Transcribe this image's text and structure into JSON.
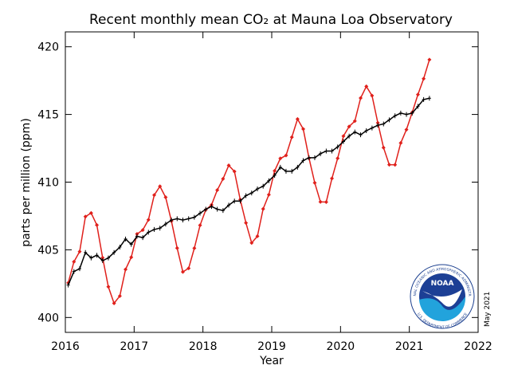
{
  "chart_data": {
    "type": "line",
    "title": "Recent monthly mean CO₂ at Mauna Loa Observatory",
    "x_label": "Year",
    "y_label": "parts per million (ppm)",
    "annotation": "May 2021",
    "logo": {
      "name": "NOAA",
      "ring_top": "NATIONAL OCEANIC AND ATMOSPHERIC ADMINISTRATION",
      "ring_bottom": "U.S. DEPARTMENT OF COMMERCE"
    },
    "xlim": [
      2016,
      2022
    ],
    "xticks": [
      2016,
      2017,
      2018,
      2019,
      2020,
      2021,
      2022
    ],
    "ylim": [
      398.9,
      421.1
    ],
    "yticks": [
      400,
      405,
      410,
      415,
      420
    ],
    "x": [
      2016.042,
      2016.125,
      2016.208,
      2016.292,
      2016.375,
      2016.458,
      2016.542,
      2016.625,
      2016.708,
      2016.792,
      2016.875,
      2016.958,
      2017.042,
      2017.125,
      2017.208,
      2017.292,
      2017.375,
      2017.458,
      2017.542,
      2017.625,
      2017.708,
      2017.792,
      2017.875,
      2017.958,
      2018.042,
      2018.125,
      2018.208,
      2018.292,
      2018.375,
      2018.458,
      2018.542,
      2018.625,
      2018.708,
      2018.792,
      2018.875,
      2018.958,
      2019.042,
      2019.125,
      2019.208,
      2019.292,
      2019.375,
      2019.458,
      2019.542,
      2019.625,
      2019.708,
      2019.792,
      2019.875,
      2019.958,
      2020.042,
      2020.125,
      2020.208,
      2020.292,
      2020.375,
      2020.458,
      2020.542,
      2020.625,
      2020.708,
      2020.792,
      2020.875,
      2020.958,
      2021.042,
      2021.125,
      2021.208,
      2021.292
    ],
    "series": [
      {
        "color": "#e0201b",
        "marker": "diamond",
        "values": [
          402.56,
          404.12,
          404.87,
          407.45,
          407.72,
          406.83,
          404.41,
          402.27,
          401.05,
          401.59,
          403.55,
          404.45,
          406.17,
          406.46,
          407.22,
          409.04,
          409.69,
          408.88,
          407.12,
          405.13,
          403.37,
          403.63,
          405.12,
          406.81,
          407.96,
          408.32,
          409.41,
          410.24,
          411.24,
          410.79,
          408.71,
          406.99,
          405.51,
          406.0,
          408.02,
          409.07,
          410.83,
          411.75,
          411.97,
          413.32,
          414.66,
          413.92,
          411.77,
          409.95,
          408.54,
          408.53,
          410.27,
          411.76,
          413.4,
          414.11,
          414.51,
          416.21,
          417.07,
          416.39,
          414.38,
          412.55,
          411.29,
          411.28,
          412.89,
          413.88,
          415.15,
          416.47,
          417.64,
          419.05
        ]
      },
      {
        "color": "#000000",
        "marker": "plus",
        "values": [
          402.4,
          403.4,
          403.6,
          404.8,
          404.4,
          404.6,
          404.2,
          404.4,
          404.8,
          405.2,
          405.8,
          405.4,
          406.0,
          405.9,
          406.3,
          406.5,
          406.6,
          406.9,
          407.2,
          407.3,
          407.2,
          407.3,
          407.4,
          407.7,
          408.0,
          408.2,
          408.0,
          407.9,
          408.3,
          408.6,
          408.6,
          409.0,
          409.2,
          409.5,
          409.7,
          410.1,
          410.5,
          411.1,
          410.8,
          410.8,
          411.1,
          411.6,
          411.8,
          411.8,
          412.1,
          412.3,
          412.3,
          412.6,
          413.0,
          413.4,
          413.7,
          413.5,
          413.8,
          414.0,
          414.2,
          414.3,
          414.6,
          414.9,
          415.1,
          415.0,
          415.1,
          415.6,
          416.1,
          416.2
        ]
      }
    ]
  }
}
